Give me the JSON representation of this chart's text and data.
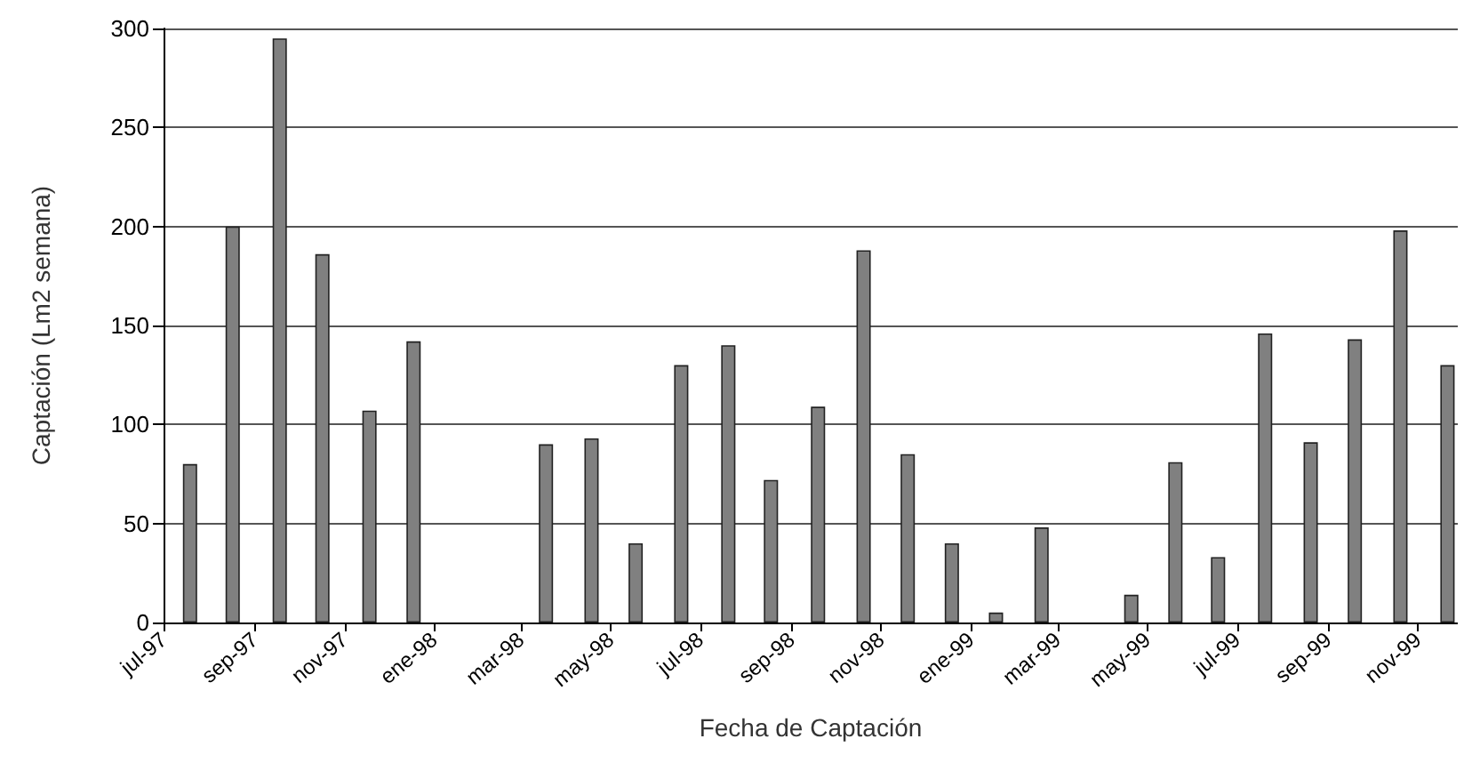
{
  "chart_data": {
    "type": "bar",
    "xlabel": "Fecha de Captación",
    "ylabel": "Captación (Lm2 semana)",
    "x": [
      "1997-07-19",
      "1997-08-17",
      "1997-09-18",
      "1997-10-17",
      "1997-11-18",
      "1997-12-18",
      "1998-03-18",
      "1998-04-18",
      "1998-05-18",
      "1998-06-18",
      "1998-07-20",
      "1998-08-18",
      "1998-09-19",
      "1998-10-20",
      "1998-11-19",
      "1998-12-19",
      "1999-01-18",
      "1999-02-18",
      "1999-04-20",
      "1999-05-20",
      "1999-06-18",
      "1999-07-20",
      "1999-08-20",
      "1999-09-19",
      "1999-10-20",
      "1999-11-21"
    ],
    "series": [
      {
        "color": "#808080",
        "values": [
          80,
          200,
          295,
          186,
          107,
          142,
          90,
          93,
          40,
          130,
          140,
          72,
          109,
          188,
          85,
          40,
          5,
          48,
          14,
          81,
          33,
          146,
          91,
          143,
          198,
          130
        ]
      }
    ],
    "xlim": [
      "1997-07-01",
      "1999-11-28"
    ],
    "xticks": [
      {
        "value": "1997-07-01",
        "label": "jul-97"
      },
      {
        "value": "1997-09-01",
        "label": "sep-97"
      },
      {
        "value": "1997-11-01",
        "label": "nov-97"
      },
      {
        "value": "1998-01-01",
        "label": "ene-98"
      },
      {
        "value": "1998-03-01",
        "label": "mar-98"
      },
      {
        "value": "1998-05-01",
        "label": "may-98"
      },
      {
        "value": "1998-07-01",
        "label": "jul-98"
      },
      {
        "value": "1998-09-01",
        "label": "sep-98"
      },
      {
        "value": "1998-11-01",
        "label": "nov-98"
      },
      {
        "value": "1999-01-01",
        "label": "ene-99"
      },
      {
        "value": "1999-03-01",
        "label": "mar-99"
      },
      {
        "value": "1999-05-01",
        "label": "may-99"
      },
      {
        "value": "1999-07-01",
        "label": "jul-99"
      },
      {
        "value": "1999-09-01",
        "label": "sep-99"
      },
      {
        "value": "1999-11-01",
        "label": "nov-99"
      }
    ],
    "ylim": [
      0,
      300
    ],
    "yticks": [
      0,
      50,
      100,
      150,
      200,
      250,
      300
    ],
    "grid": "y"
  }
}
